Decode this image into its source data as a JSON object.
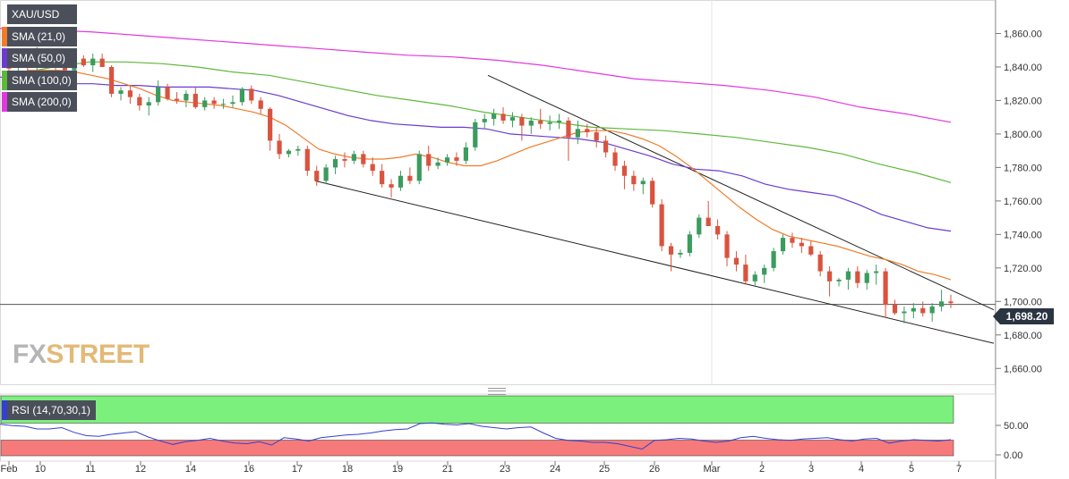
{
  "chart_data": [
    {
      "type": "candlestick",
      "symbol": "XAU/USD",
      "ylim": [
        1650,
        1880
      ],
      "y_ticks": [
        "1,660.00",
        "1,680.00",
        "1,700.00",
        "1,720.00",
        "1,740.00",
        "1,760.00",
        "1,780.00",
        "1,800.00",
        "1,820.00",
        "1,840.00",
        "1,860.00"
      ],
      "y_tick_values": [
        1660,
        1680,
        1700,
        1720,
        1740,
        1760,
        1780,
        1800,
        1820,
        1840,
        1860
      ],
      "x_labels": [
        "Feb",
        "10",
        "11",
        "12",
        "14",
        "16",
        "17",
        "18",
        "19",
        "21",
        "23",
        "24",
        "25",
        "26",
        "Mar",
        "2",
        "3",
        "4",
        "5",
        "7"
      ],
      "last_price": 1698.2,
      "last_price_label": "1,698.20",
      "colors": {
        "up": "#3c9b5e",
        "down": "#d9533f",
        "sma21": "#f07c29",
        "sma50": "#6a3bd1",
        "sma100": "#5fb83a",
        "sma200": "#e337e0"
      },
      "legend": [
        {
          "label": "XAU/USD",
          "color": "#ffffff"
        },
        {
          "label": "SMA (21,0)",
          "color": "#f07c29"
        },
        {
          "label": "SMA (50,0)",
          "color": "#6a3bd1"
        },
        {
          "label": "SMA (100,0)",
          "color": "#5fb83a"
        },
        {
          "label": "SMA (200,0)",
          "color": "#e337e0"
        }
      ],
      "candles_ohlc": [
        [
          1842,
          1846,
          1836,
          1839
        ],
        [
          1840,
          1848,
          1833,
          1843
        ],
        [
          1843,
          1847,
          1837,
          1840
        ],
        [
          1840,
          1852,
          1838,
          1848
        ],
        [
          1847,
          1848,
          1839,
          1843
        ],
        [
          1843,
          1845,
          1838,
          1842
        ],
        [
          1842,
          1844,
          1834,
          1838
        ],
        [
          1838,
          1847,
          1836,
          1845
        ],
        [
          1845,
          1847,
          1840,
          1841
        ],
        [
          1841,
          1848,
          1837,
          1845
        ],
        [
          1845,
          1848,
          1840,
          1840
        ],
        [
          1840,
          1841,
          1822,
          1824
        ],
        [
          1824,
          1828,
          1820,
          1826
        ],
        [
          1826,
          1829,
          1818,
          1822
        ],
        [
          1822,
          1824,
          1814,
          1817
        ],
        [
          1817,
          1822,
          1811,
          1819
        ],
        [
          1819,
          1832,
          1817,
          1828
        ],
        [
          1828,
          1830,
          1820,
          1821
        ],
        [
          1821,
          1825,
          1818,
          1820
        ],
        [
          1820,
          1826,
          1816,
          1824
        ],
        [
          1824,
          1828,
          1815,
          1816
        ],
        [
          1816,
          1822,
          1814,
          1820
        ],
        [
          1820,
          1822,
          1815,
          1818
        ],
        [
          1818,
          1821,
          1815,
          1818
        ],
        [
          1818,
          1823,
          1816,
          1819
        ],
        [
          1819,
          1828,
          1817,
          1827
        ],
        [
          1827,
          1829,
          1818,
          1820
        ],
        [
          1820,
          1822,
          1812,
          1815
        ],
        [
          1815,
          1816,
          1790,
          1796
        ],
        [
          1796,
          1800,
          1785,
          1788
        ],
        [
          1788,
          1791,
          1786,
          1790
        ],
        [
          1790,
          1793,
          1787,
          1791
        ],
        [
          1791,
          1793,
          1775,
          1778
        ],
        [
          1778,
          1781,
          1769,
          1772
        ],
        [
          1772,
          1782,
          1770,
          1780
        ],
        [
          1780,
          1787,
          1776,
          1785
        ],
        [
          1785,
          1789,
          1780,
          1784
        ],
        [
          1784,
          1790,
          1782,
          1788
        ],
        [
          1788,
          1790,
          1780,
          1782
        ],
        [
          1782,
          1786,
          1775,
          1778
        ],
        [
          1778,
          1782,
          1768,
          1770
        ],
        [
          1770,
          1773,
          1762,
          1768
        ],
        [
          1768,
          1778,
          1766,
          1775
        ],
        [
          1775,
          1780,
          1770,
          1772
        ],
        [
          1772,
          1790,
          1770,
          1788
        ],
        [
          1788,
          1793,
          1778,
          1781
        ],
        [
          1781,
          1786,
          1779,
          1783
        ],
        [
          1783,
          1788,
          1781,
          1786
        ],
        [
          1786,
          1789,
          1781,
          1784
        ],
        [
          1784,
          1795,
          1782,
          1792
        ],
        [
          1792,
          1809,
          1790,
          1807
        ],
        [
          1807,
          1812,
          1803,
          1809
        ],
        [
          1809,
          1815,
          1805,
          1812
        ],
        [
          1812,
          1816,
          1806,
          1808
        ],
        [
          1808,
          1813,
          1804,
          1810
        ],
        [
          1810,
          1812,
          1796,
          1805
        ],
        [
          1805,
          1810,
          1800,
          1808
        ],
        [
          1808,
          1815,
          1803,
          1806
        ],
        [
          1806,
          1811,
          1802,
          1807
        ],
        [
          1807,
          1812,
          1803,
          1808
        ],
        [
          1808,
          1810,
          1784,
          1798
        ],
        [
          1798,
          1808,
          1794,
          1803
        ],
        [
          1803,
          1806,
          1798,
          1801
        ],
        [
          1801,
          1804,
          1792,
          1796
        ],
        [
          1796,
          1799,
          1786,
          1789
        ],
        [
          1789,
          1792,
          1778,
          1781
        ],
        [
          1781,
          1784,
          1767,
          1775
        ],
        [
          1775,
          1778,
          1766,
          1770
        ],
        [
          1770,
          1774,
          1764,
          1772
        ],
        [
          1772,
          1774,
          1756,
          1758
        ],
        [
          1758,
          1761,
          1730,
          1733
        ],
        [
          1733,
          1735,
          1718,
          1728
        ],
        [
          1728,
          1731,
          1726,
          1729
        ],
        [
          1729,
          1742,
          1727,
          1740
        ],
        [
          1740,
          1752,
          1738,
          1750
        ],
        [
          1750,
          1760,
          1745,
          1745
        ],
        [
          1745,
          1749,
          1737,
          1740
        ],
        [
          1740,
          1742,
          1721,
          1726
        ],
        [
          1726,
          1730,
          1718,
          1722
        ],
        [
          1722,
          1728,
          1710,
          1712
        ],
        [
          1712,
          1718,
          1709,
          1716
        ],
        [
          1716,
          1722,
          1711,
          1720
        ],
        [
          1720,
          1732,
          1718,
          1730
        ],
        [
          1730,
          1740,
          1728,
          1738
        ],
        [
          1738,
          1741,
          1732,
          1735
        ],
        [
          1735,
          1738,
          1729,
          1733
        ],
        [
          1733,
          1736,
          1727,
          1728
        ],
        [
          1728,
          1730,
          1715,
          1718
        ],
        [
          1718,
          1721,
          1703,
          1712
        ],
        [
          1712,
          1714,
          1709,
          1713
        ],
        [
          1713,
          1720,
          1707,
          1718
        ],
        [
          1718,
          1721,
          1708,
          1711
        ],
        [
          1711,
          1719,
          1707,
          1717
        ],
        [
          1717,
          1722,
          1710,
          1718
        ],
        [
          1718,
          1720,
          1690,
          1698
        ],
        [
          1698,
          1701,
          1692,
          1693
        ],
        [
          1693,
          1697,
          1687,
          1694
        ],
        [
          1694,
          1699,
          1690,
          1696
        ],
        [
          1696,
          1700,
          1691,
          1693
        ],
        [
          1693,
          1699,
          1688,
          1697
        ],
        [
          1697,
          1707,
          1694,
          1700
        ],
        [
          1700,
          1704,
          1696,
          1699
        ]
      ],
      "sma21": [
        1838,
        1838,
        1838,
        1837,
        1835,
        1833,
        1830,
        1827,
        1823,
        1820,
        1819,
        1818,
        1817,
        1815,
        1813,
        1810,
        1805,
        1798,
        1791,
        1788,
        1786,
        1785,
        1785,
        1786,
        1788,
        1786,
        1783,
        1781,
        1781,
        1784,
        1788,
        1792,
        1795,
        1798,
        1801,
        1802,
        1802,
        1800,
        1797,
        1793,
        1787,
        1780,
        1772,
        1764,
        1756,
        1749,
        1743,
        1739,
        1737,
        1735,
        1733,
        1730,
        1727,
        1725,
        1722,
        1718,
        1716,
        1713
      ],
      "sma50": [
        1834,
        1832,
        1831,
        1830,
        1830,
        1829,
        1829,
        1828,
        1828,
        1828,
        1827,
        1826,
        1823,
        1819,
        1815,
        1811,
        1808,
        1806,
        1805,
        1804,
        1804,
        1803,
        1800,
        1799,
        1798,
        1797,
        1795,
        1791,
        1787,
        1782,
        1779,
        1778,
        1775,
        1770,
        1767,
        1765,
        1763,
        1758,
        1752,
        1748,
        1744,
        1742
      ],
      "sma100": [
        1836,
        1840,
        1843,
        1843,
        1842,
        1840,
        1837,
        1835,
        1831,
        1827,
        1823,
        1820,
        1817,
        1813,
        1810,
        1807,
        1804,
        1803,
        1802,
        1800,
        1798,
        1795,
        1792,
        1788,
        1782,
        1777,
        1771
      ],
      "sma200": [
        1863,
        1862,
        1861,
        1859,
        1857,
        1855,
        1853,
        1851,
        1849,
        1847,
        1846,
        1844,
        1841,
        1837,
        1833,
        1831,
        1829,
        1826,
        1822,
        1816,
        1812,
        1807
      ],
      "trendlines": [
        {
          "name": "",
          "from_price": 1835,
          "to_price": 1695
        },
        {
          "name": "",
          "from_price": 1772,
          "to_price": 1675
        }
      ]
    },
    {
      "type": "line",
      "indicator_label": "RSI (14,70,30,1)",
      "ylim": [
        0,
        100
      ],
      "y_ticks": [
        "50.00",
        "0.00"
      ],
      "y_tick_values": [
        50,
        0
      ],
      "overbought": 70,
      "oversold": 30,
      "series": [
        {
          "name": "RSI (14,70,30,1)",
          "color": "#3340d0",
          "values": [
            55,
            53,
            52,
            48,
            48,
            50,
            43,
            38,
            37,
            40,
            42,
            44,
            36,
            30,
            25,
            29,
            31,
            34,
            30,
            27,
            26,
            29,
            24,
            35,
            33,
            30,
            35,
            37,
            39,
            40,
            42,
            45,
            47,
            48,
            56,
            57,
            55,
            54,
            56,
            52,
            50,
            48,
            50,
            51,
            42,
            34,
            31,
            30,
            28,
            28,
            26,
            22,
            18,
            31,
            32,
            34,
            33,
            30,
            28,
            30,
            35,
            37,
            34,
            32,
            31,
            33,
            34,
            35,
            32,
            30,
            33,
            34,
            27,
            30,
            32,
            31,
            30,
            32
          ]
        }
      ]
    }
  ],
  "rsi_label": "RSI (14,70,30,1)",
  "price_label": "1,698.20",
  "logo": {
    "fx": "FX",
    "street": "STREET"
  }
}
